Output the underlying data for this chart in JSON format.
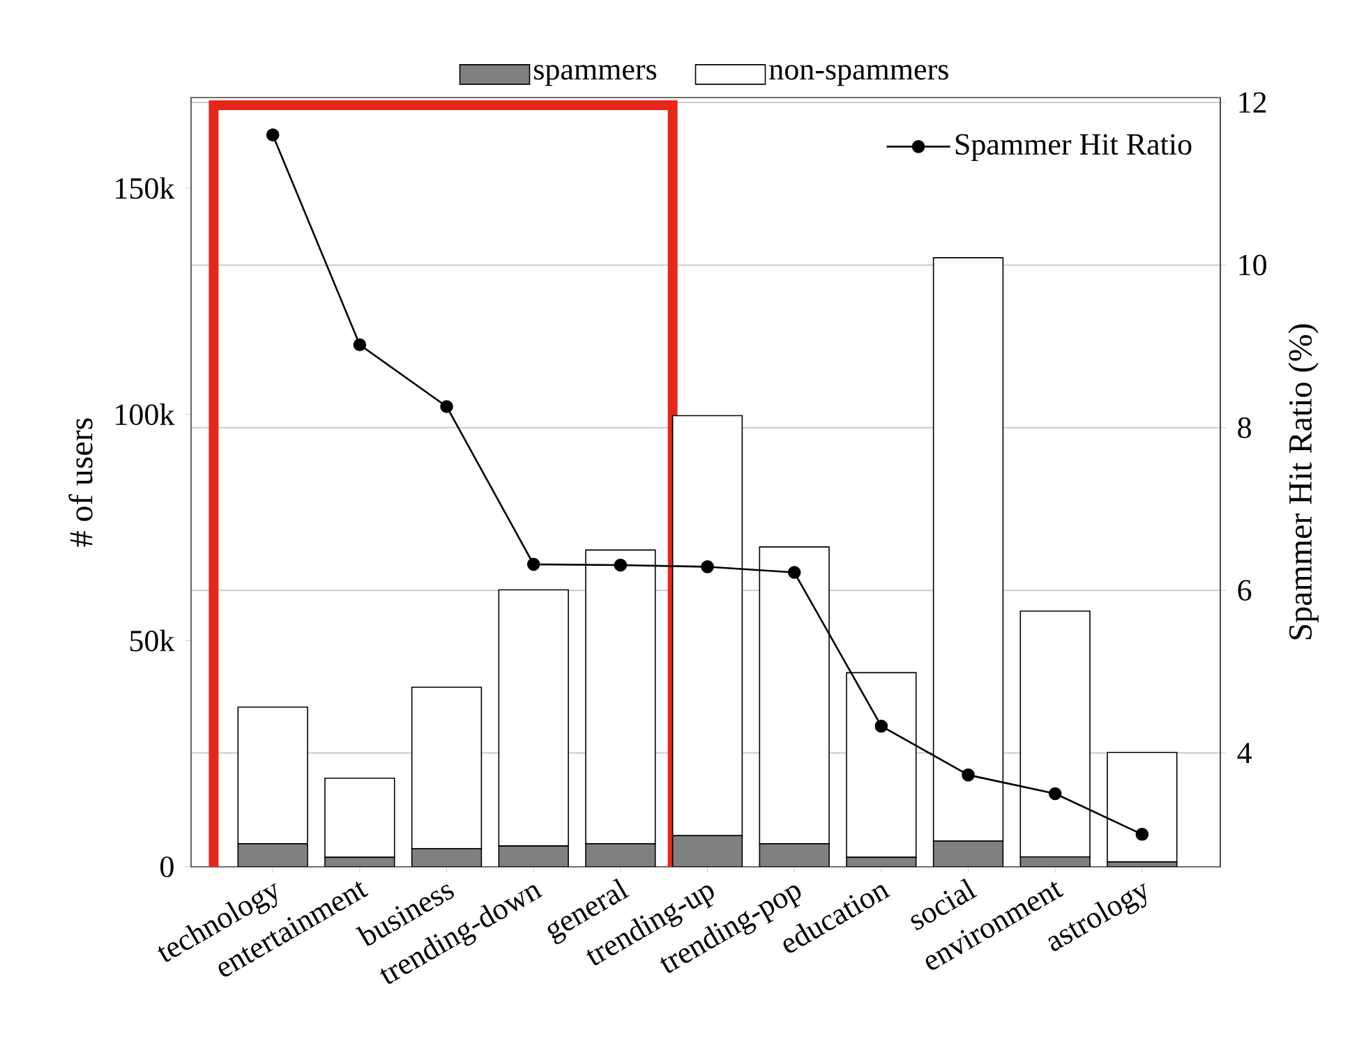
{
  "chart_data": {
    "type": "bar",
    "stacked": true,
    "ylabel": "# of users",
    "y2label": "Spammer Hit Ratio (%)",
    "categories": [
      "technology",
      "entertainment",
      "business",
      "trending-down",
      "general",
      "trending-up",
      "trending-pop",
      "education",
      "social",
      "environment",
      "astrology"
    ],
    "series": [
      {
        "name": "spammers",
        "color": "#808080",
        "values": [
          5100,
          2100,
          4000,
          4600,
          5100,
          6900,
          5100,
          2100,
          5700,
          2200,
          1100
        ]
      },
      {
        "name": "non-spammers",
        "color": "#ffffff",
        "values": [
          30200,
          17500,
          35700,
          56600,
          64900,
          92800,
          65600,
          40800,
          128900,
          54300,
          24200
        ]
      },
      {
        "name": "Spammer Hit Ratio",
        "type": "line",
        "axis": "y2",
        "color": "#000000",
        "marker": "circle",
        "values": [
          11.6,
          9.02,
          8.26,
          6.32,
          6.31,
          6.29,
          6.22,
          4.33,
          3.73,
          3.5,
          3.0
        ]
      }
    ],
    "ylim": [
      0,
      170000
    ],
    "yticks": [
      0,
      {
        "value": 50000,
        "label": "50k"
      },
      {
        "value": 100000,
        "label": "100k"
      },
      {
        "value": 150000,
        "label": "150k"
      }
    ],
    "y2lim": [
      2.6,
      12.06
    ],
    "y2ticks": [
      4,
      6,
      8,
      10,
      12
    ],
    "grid": "y2",
    "legend": "top"
  }
}
